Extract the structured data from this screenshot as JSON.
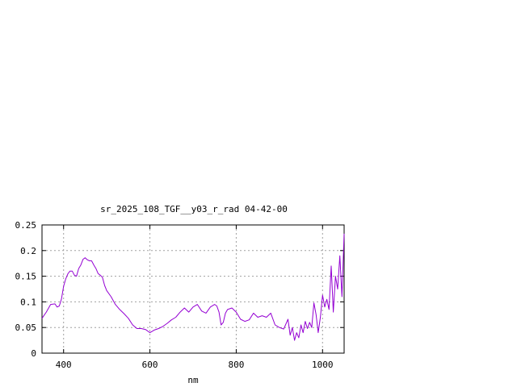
{
  "chart_data": {
    "type": "line",
    "title": "sr_2025_108_TGF__y03_r_rad 04-42-00",
    "xlabel": "nm",
    "ylabel": "",
    "xlim": [
      350,
      1050
    ],
    "ylim": [
      0,
      0.25
    ],
    "x_ticks": [
      400,
      600,
      800,
      1000
    ],
    "x_tick_labels": [
      "400",
      "600",
      "800",
      "1000"
    ],
    "y_ticks": [
      0,
      0.05,
      0.1,
      0.15,
      0.2,
      0.25
    ],
    "y_tick_labels": [
      "0",
      "0.05",
      "0.1",
      "0.15",
      "0.2",
      "0.25"
    ],
    "grid": true,
    "legend": "none",
    "series_color": "#9400d3",
    "series": [
      {
        "x": [
          350,
          360,
          370,
          380,
          385,
          390,
          395,
          400,
          405,
          410,
          415,
          420,
          425,
          430,
          435,
          440,
          445,
          450,
          455,
          460,
          465,
          470,
          475,
          480,
          485,
          490,
          495,
          500,
          510,
          520,
          530,
          540,
          550,
          560,
          570,
          580,
          590,
          600,
          610,
          620,
          630,
          640,
          650,
          660,
          670,
          675,
          680,
          690,
          700,
          710,
          720,
          730,
          740,
          750,
          755,
          760,
          765,
          770,
          775,
          780,
          790,
          800,
          810,
          820,
          830,
          840,
          850,
          860,
          870,
          880,
          890,
          900,
          910,
          920,
          925,
          930,
          935,
          940,
          945,
          950,
          955,
          960,
          965,
          970,
          975,
          980,
          985,
          990,
          995,
          1000,
          1005,
          1010,
          1015,
          1020,
          1025,
          1030,
          1035,
          1040,
          1045,
          1050
        ],
        "y": [
          0.068,
          0.08,
          0.095,
          0.096,
          0.09,
          0.092,
          0.105,
          0.13,
          0.145,
          0.155,
          0.16,
          0.16,
          0.152,
          0.15,
          0.165,
          0.172,
          0.183,
          0.186,
          0.182,
          0.18,
          0.18,
          0.172,
          0.165,
          0.155,
          0.152,
          0.148,
          0.132,
          0.122,
          0.11,
          0.095,
          0.085,
          0.077,
          0.068,
          0.055,
          0.048,
          0.048,
          0.046,
          0.04,
          0.045,
          0.048,
          0.052,
          0.058,
          0.065,
          0.07,
          0.08,
          0.084,
          0.088,
          0.08,
          0.09,
          0.095,
          0.082,
          0.078,
          0.09,
          0.095,
          0.092,
          0.08,
          0.055,
          0.06,
          0.078,
          0.085,
          0.088,
          0.08,
          0.066,
          0.062,
          0.065,
          0.078,
          0.07,
          0.073,
          0.07,
          0.078,
          0.055,
          0.05,
          0.047,
          0.066,
          0.035,
          0.05,
          0.025,
          0.04,
          0.03,
          0.055,
          0.04,
          0.062,
          0.048,
          0.06,
          0.05,
          0.098,
          0.075,
          0.04,
          0.07,
          0.113,
          0.09,
          0.105,
          0.085,
          0.17,
          0.08,
          0.15,
          0.125,
          0.19,
          0.11,
          0.233
        ]
      }
    ]
  }
}
